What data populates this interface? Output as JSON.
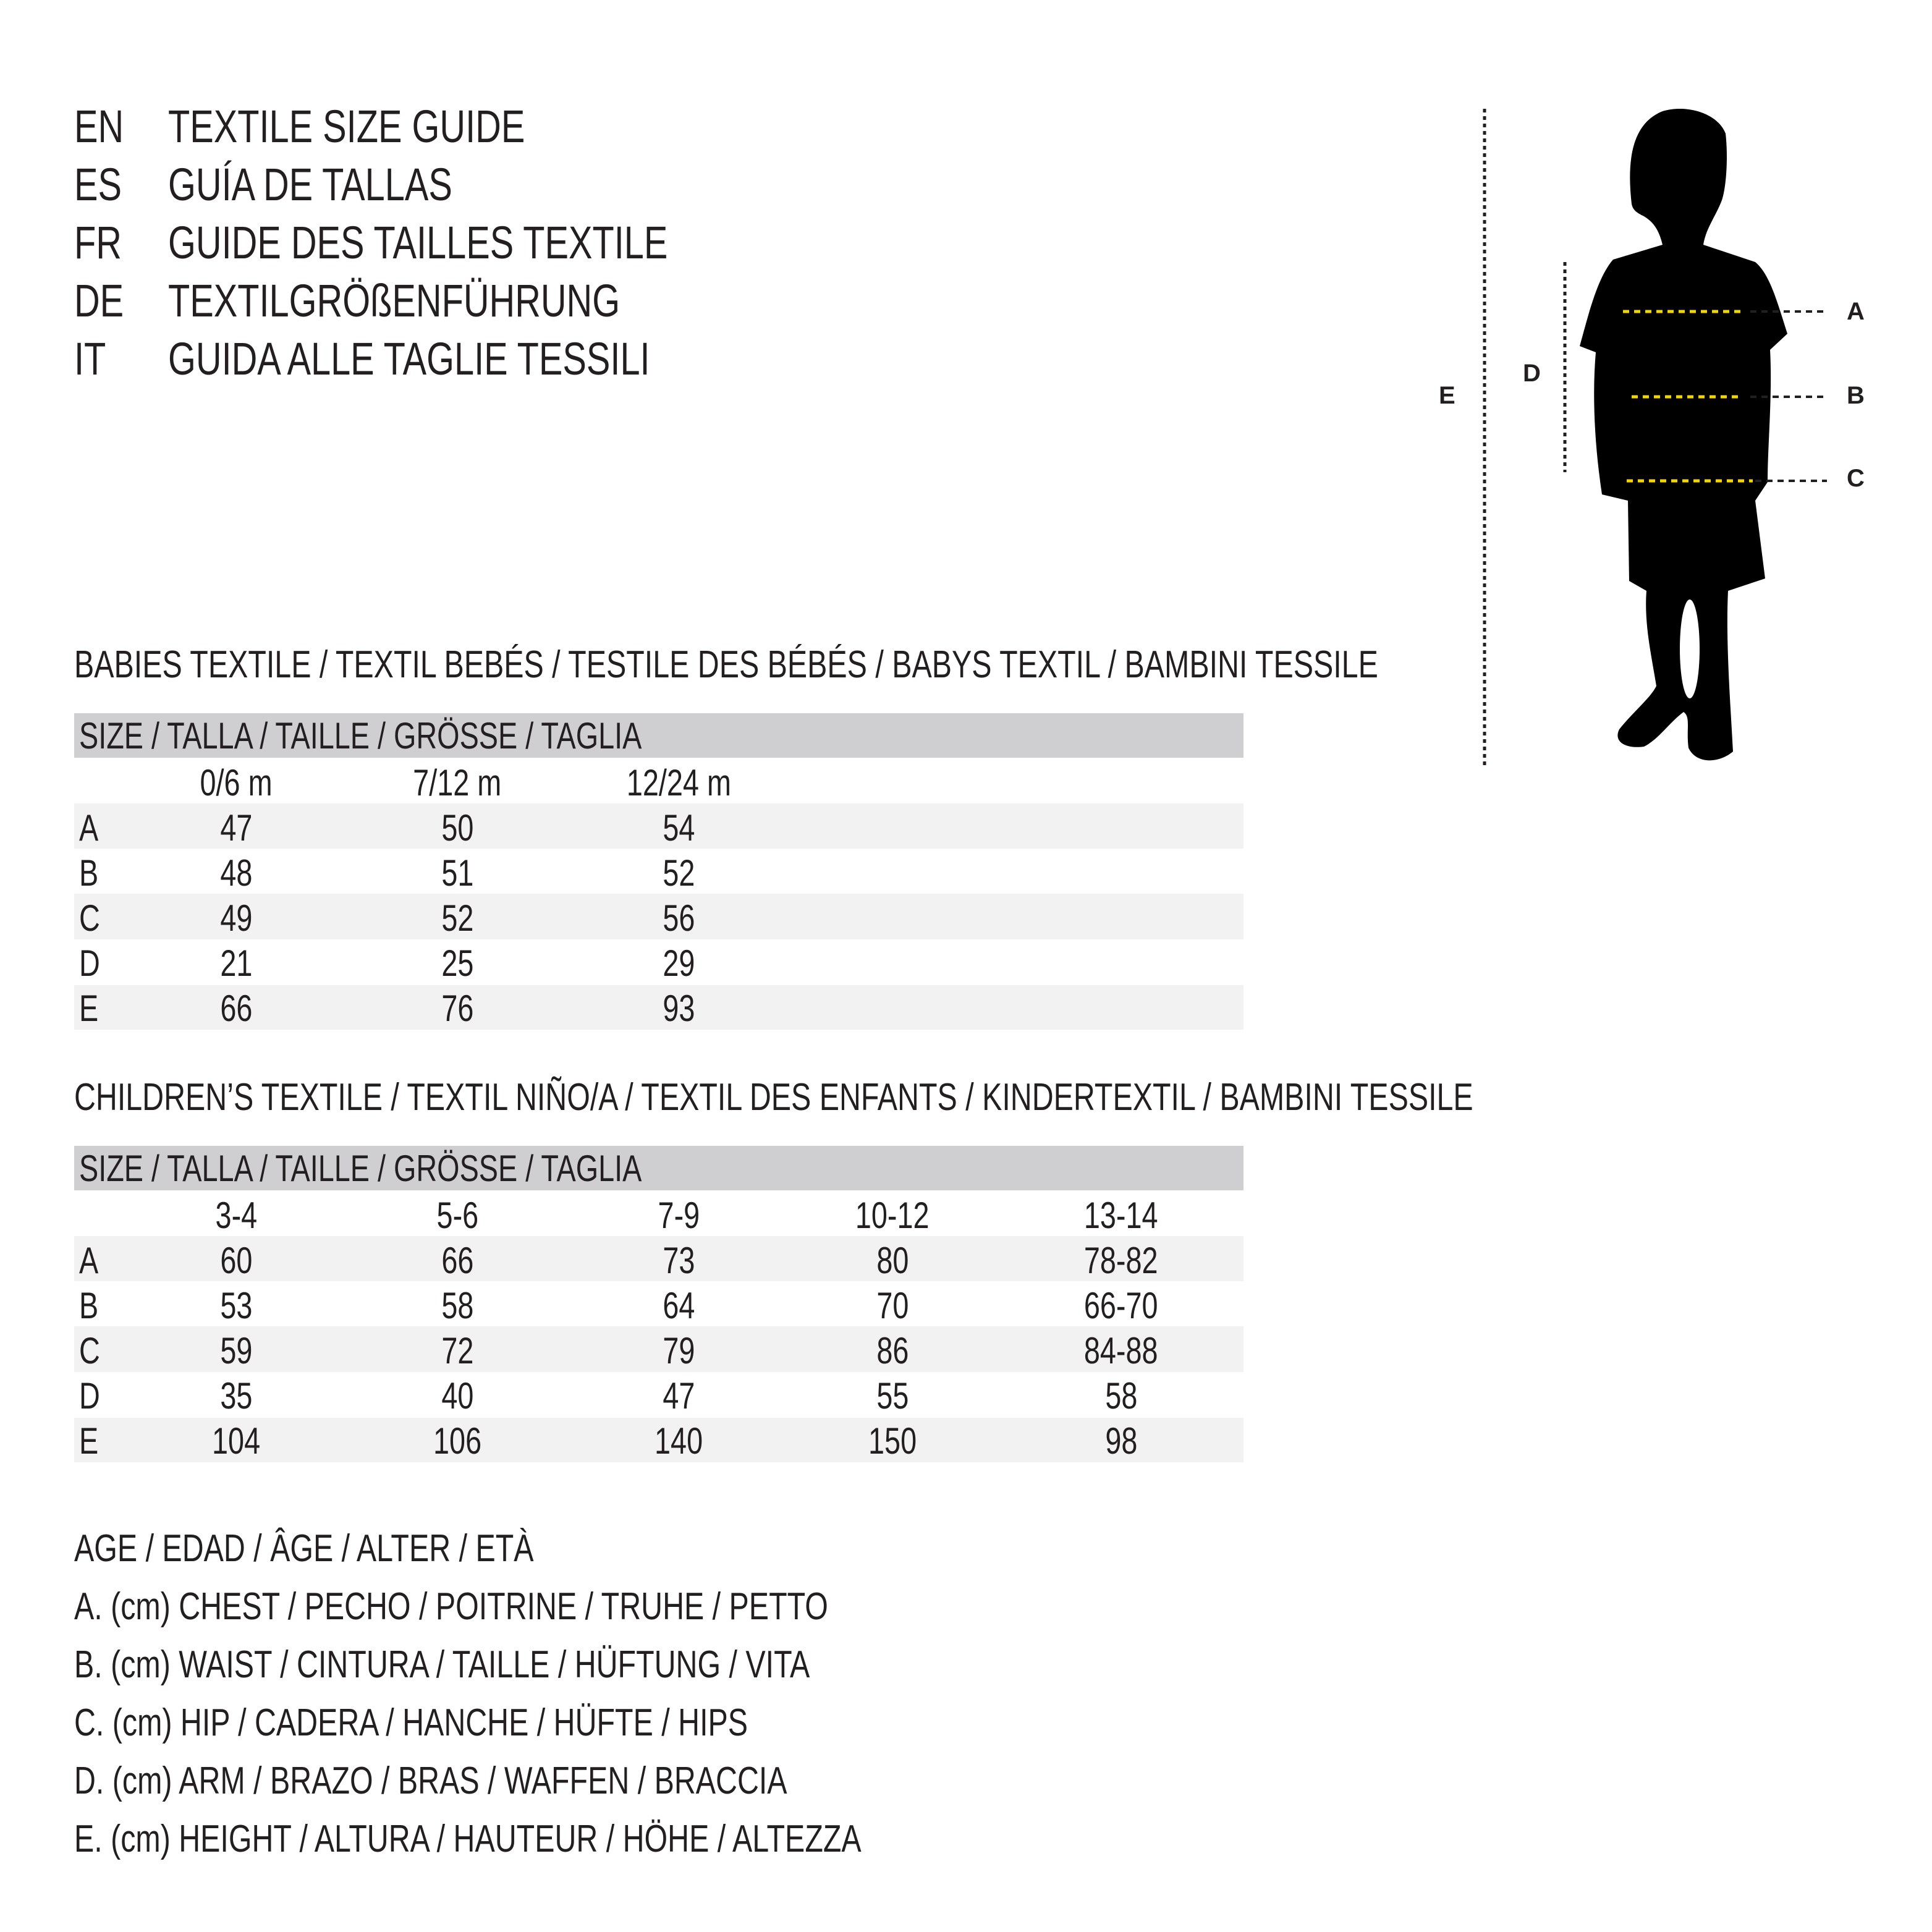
{
  "titles": [
    {
      "code": "EN",
      "text": "TEXTILE SIZE GUIDE"
    },
    {
      "code": "ES",
      "text": "GUÍA DE TALLAS"
    },
    {
      "code": "FR",
      "text": "GUIDE DES TAILLES TEXTILE"
    },
    {
      "code": "DE",
      "text": "TEXTILGRÖßENFÜHRUNG"
    },
    {
      "code": "IT",
      "text": "GUIDA ALLE TAGLIE TESSILI"
    }
  ],
  "figure": {
    "labels": {
      "A": "A",
      "B": "B",
      "C": "C",
      "D": "D",
      "E": "E"
    },
    "measure_line_color": "#f2d600",
    "silhouette_color": "#000000"
  },
  "babies": {
    "heading": "BABIES TEXTILE / TEXTIL BEBÉS / TESTILE DES BÉBÉS / BABYS TEXTIL / BAMBINI TESSILE",
    "size_header": "SIZE / TALLA / TAILLE / GRÖSSE / TAGLIA",
    "columns": [
      "0/6 m",
      "7/12 m",
      "12/24 m"
    ],
    "rows": [
      {
        "label": "A",
        "values": [
          "47",
          "50",
          "54"
        ]
      },
      {
        "label": "B",
        "values": [
          "48",
          "51",
          "52"
        ]
      },
      {
        "label": "C",
        "values": [
          "49",
          "52",
          "56"
        ]
      },
      {
        "label": "D",
        "values": [
          "21",
          "25",
          "29"
        ]
      },
      {
        "label": "E",
        "values": [
          "66",
          "76",
          "93"
        ]
      }
    ]
  },
  "children": {
    "heading": "CHILDREN’S TEXTILE / TEXTIL NIÑO/A / TEXTIL DES ENFANTS / KINDERTEXTIL / BAMBINI TESSILE",
    "size_header": "SIZE / TALLA / TAILLE / GRÖSSE / TAGLIA",
    "columns": [
      "3-4",
      "5-6",
      "7-9",
      "10-12",
      "13-14"
    ],
    "rows": [
      {
        "label": "A",
        "values": [
          "60",
          "66",
          "73",
          "80",
          "78-82"
        ]
      },
      {
        "label": "B",
        "values": [
          "53",
          "58",
          "64",
          "70",
          "66-70"
        ]
      },
      {
        "label": "C",
        "values": [
          "59",
          "72",
          "79",
          "86",
          "84-88"
        ]
      },
      {
        "label": "D",
        "values": [
          "35",
          "40",
          "47",
          "55",
          "58"
        ]
      },
      {
        "label": "E",
        "values": [
          "104",
          "106",
          "140",
          "150",
          "98"
        ]
      }
    ]
  },
  "legend": [
    "AGE / EDAD / ÂGE / ALTER / ETÀ",
    "A. (cm) CHEST / PECHO / POITRINE / TRUHE / PETTO",
    "B. (cm) WAIST / CINTURA / TAILLE / HÜFTUNG / VITA",
    "C. (cm) HIP / CADERA / HANCHE / HÜFTE / HIPS",
    "D. (cm) ARM / BRAZO / BRAS / WAFFEN / BRACCIA",
    "E. (cm) HEIGHT / ALTURA / HAUTEUR / HÖHE / ALTEZZA"
  ]
}
